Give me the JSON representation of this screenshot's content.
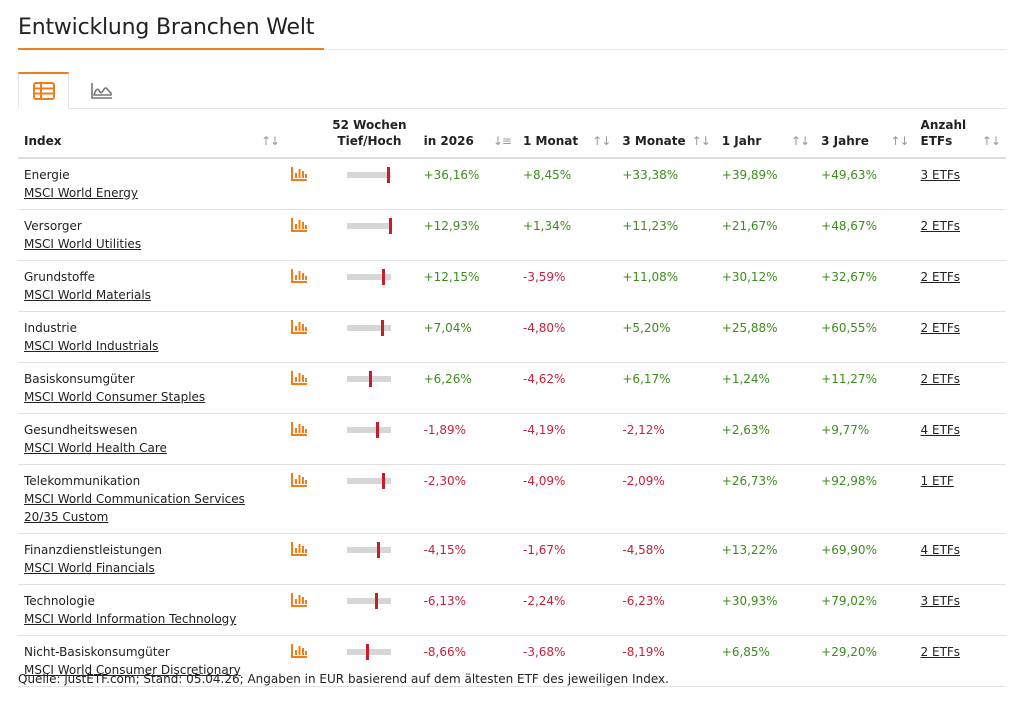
{
  "page": {
    "title": "Entwicklung Branchen Welt",
    "accent_color": "#f07d1a",
    "positive_color": "#3d8c1e",
    "negative_color": "#c7213a"
  },
  "tabs": [
    {
      "name": "table-view",
      "icon": "table-icon",
      "active": true
    },
    {
      "name": "chart-view",
      "icon": "area-chart-icon",
      "active": false
    }
  ],
  "table": {
    "headers": {
      "index": "Index",
      "range_line1": "52 Wochen",
      "range_line2": "Tief/Hoch",
      "ytd": "in 2026",
      "m1": "1 Monat",
      "m3": "3 Monate",
      "y1": "1 Jahr",
      "y3": "3 Jahre",
      "etfs_line1": "Anzahl",
      "etfs_line2": "ETFs"
    },
    "rows": [
      {
        "sector": "Energie",
        "index": "MSCI World Energy",
        "range_position": 0.92,
        "ytd": "+36,16%",
        "m1": "+8,45%",
        "m3": "+33,38%",
        "y1": "+39,89%",
        "y3": "+49,63%",
        "etfs": "3 ETFs"
      },
      {
        "sector": "Versorger",
        "index": "MSCI World Utilities",
        "range_position": 0.96,
        "ytd": "+12,93%",
        "m1": "+1,34%",
        "m3": "+11,23%",
        "y1": "+21,67%",
        "y3": "+48,67%",
        "etfs": "2 ETFs"
      },
      {
        "sector": "Grundstoffe",
        "index": "MSCI World Materials",
        "range_position": 0.8,
        "ytd": "+12,15%",
        "m1": "-3,59%",
        "m3": "+11,08%",
        "y1": "+30,12%",
        "y3": "+32,67%",
        "etfs": "2 ETFs"
      },
      {
        "sector": "Industrie",
        "index": "MSCI World Industrials",
        "range_position": 0.78,
        "ytd": "+7,04%",
        "m1": "-4,80%",
        "m3": "+5,20%",
        "y1": "+25,88%",
        "y3": "+60,55%",
        "etfs": "2 ETFs"
      },
      {
        "sector": "Basiskonsumgüter",
        "index": "MSCI World Consumer Staples",
        "range_position": 0.52,
        "ytd": "+6,26%",
        "m1": "-4,62%",
        "m3": "+6,17%",
        "y1": "+1,24%",
        "y3": "+11,27%",
        "etfs": "2 ETFs"
      },
      {
        "sector": "Gesundheitswesen",
        "index": "MSCI World Health Care",
        "range_position": 0.68,
        "ytd": "-1,89%",
        "m1": "-4,19%",
        "m3": "-2,12%",
        "y1": "+2,63%",
        "y3": "+9,77%",
        "etfs": "4 ETFs"
      },
      {
        "sector": "Telekommunikation",
        "index": "MSCI World Communication Services 20/35 Custom",
        "range_position": 0.82,
        "ytd": "-2,30%",
        "m1": "-4,09%",
        "m3": "-2,09%",
        "y1": "+26,73%",
        "y3": "+92,98%",
        "etfs": "1 ETF"
      },
      {
        "sector": "Finanzdienstleistungen",
        "index": "MSCI World Financials",
        "range_position": 0.7,
        "ytd": "-4,15%",
        "m1": "-1,67%",
        "m3": "-4,58%",
        "y1": "+13,22%",
        "y3": "+69,90%",
        "etfs": "4 ETFs"
      },
      {
        "sector": "Technologie",
        "index": "MSCI World Information Technology",
        "range_position": 0.66,
        "ytd": "-6,13%",
        "m1": "-2,24%",
        "m3": "-6,23%",
        "y1": "+30,93%",
        "y3": "+79,02%",
        "etfs": "3 ETFs"
      },
      {
        "sector": "Nicht-Basiskonsumgüter",
        "index": "MSCI World Consumer Discretionary",
        "range_position": 0.45,
        "ytd": "-8,66%",
        "m1": "-3,68%",
        "m3": "-8,19%",
        "y1": "+6,85%",
        "y3": "+29,20%",
        "etfs": "2 ETFs"
      }
    ]
  },
  "footer": {
    "source": "Quelle: justETF.com; Stand: 05.04.26; Angaben in EUR basierend auf dem ältesten ETF des jeweiligen Index."
  }
}
